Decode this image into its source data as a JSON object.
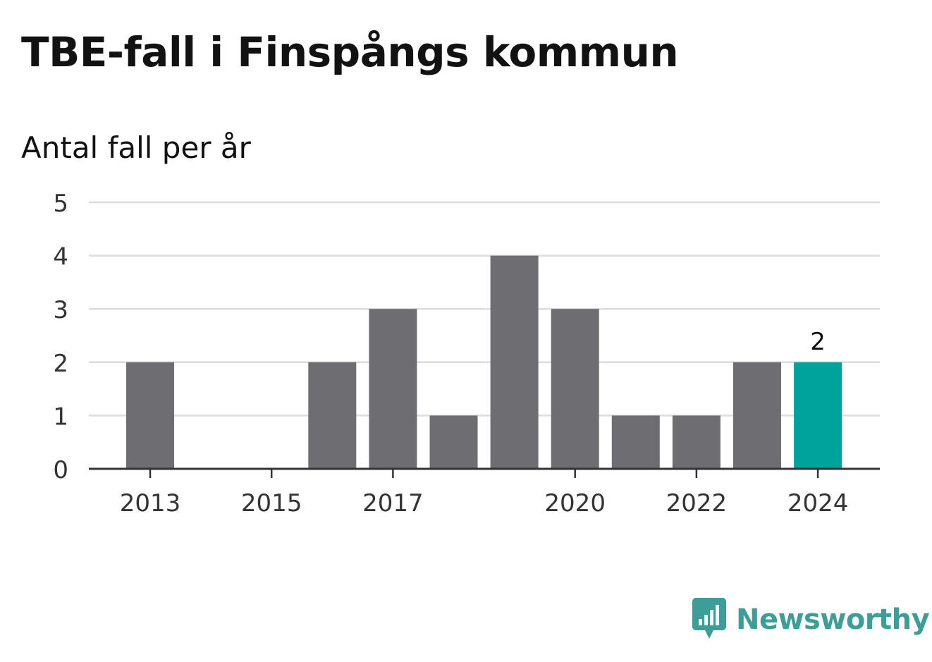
{
  "title": "TBE-fall i Finspångs kommun",
  "subtitle": "Antal fall per år",
  "brand": {
    "name": "Newsworthy",
    "icon": "newsworthy-logo-icon"
  },
  "colors": {
    "bar": "#6e6d72",
    "highlight": "#00a39b",
    "grid": "#dddddd",
    "axis": "#333333",
    "brand": "#3c9e97"
  },
  "chart_data": {
    "type": "bar",
    "categories": [
      "2013",
      "2014",
      "2015",
      "2016",
      "2017",
      "2018",
      "2019",
      "2020",
      "2021",
      "2022",
      "2023",
      "2024"
    ],
    "values": [
      2,
      0,
      0,
      2,
      3,
      1,
      4,
      3,
      1,
      1,
      2,
      2
    ],
    "x_tick_labels": [
      "2013",
      "2015",
      "2017",
      "2020",
      "2022",
      "2024"
    ],
    "y_ticks": [
      0,
      1,
      2,
      3,
      4,
      5
    ],
    "ylim": [
      0,
      5
    ],
    "highlight_category": "2024",
    "data_labels": [
      {
        "category": "2024",
        "text": "2"
      }
    ],
    "grid": true,
    "xlabel": "",
    "ylabel": ""
  }
}
